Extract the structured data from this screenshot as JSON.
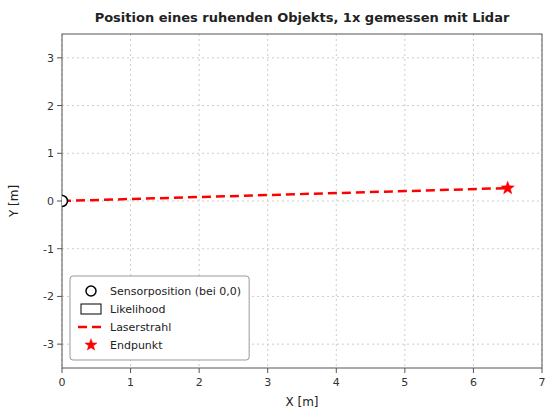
{
  "chart_data": {
    "type": "line",
    "title": "Position eines ruhenden Objekts, 1x gemessen mit Lidar",
    "x_label": "X [m]",
    "y_label": "Y [m]",
    "xlim": [
      0,
      7
    ],
    "ylim": [
      -3.5,
      3.5
    ],
    "xticks": [
      0,
      1,
      2,
      3,
      4,
      5,
      6,
      7
    ],
    "yticks": [
      -3,
      -2,
      -1,
      0,
      1,
      2,
      3
    ],
    "grid": true,
    "legend": "lower left",
    "series": [
      {
        "name": "Sensorposition (bei 0,0)",
        "type": "scatter",
        "marker": "open_circle",
        "color": "#000000",
        "x": [
          0
        ],
        "values": [
          0
        ]
      },
      {
        "name": "Likelihood",
        "type": "area",
        "color": "#ffffff",
        "x": [],
        "values": []
      },
      {
        "name": "Laserstrahl",
        "type": "line",
        "line_style": "dashed",
        "color": "#ff0000",
        "x": [
          0,
          6.5
        ],
        "values": [
          0,
          0.27
        ]
      },
      {
        "name": "Endpunkt",
        "type": "scatter",
        "marker": "star",
        "color": "#ff0000",
        "x": [
          6.5
        ],
        "values": [
          0.27
        ]
      }
    ]
  }
}
